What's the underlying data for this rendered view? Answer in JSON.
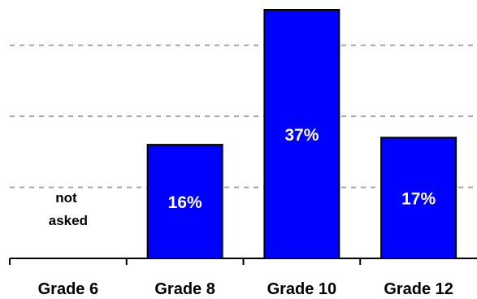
{
  "chart_data": {
    "type": "bar",
    "categories": [
      "Grade 6",
      "Grade 8",
      "Grade 10",
      "Grade 12"
    ],
    "values": [
      null,
      16,
      37,
      17
    ],
    "value_labels": [
      "",
      "16%",
      "37%",
      "17%"
    ],
    "not_asked_lines": [
      "not",
      "asked"
    ],
    "not_asked_index": 0,
    "ylim": [
      0,
      35
    ],
    "gridlines": [
      10,
      20,
      30
    ],
    "grid": true,
    "bar_color": "#0000ff",
    "bar_edge_color": "#000000",
    "grid_color": "#a6a6a6"
  }
}
